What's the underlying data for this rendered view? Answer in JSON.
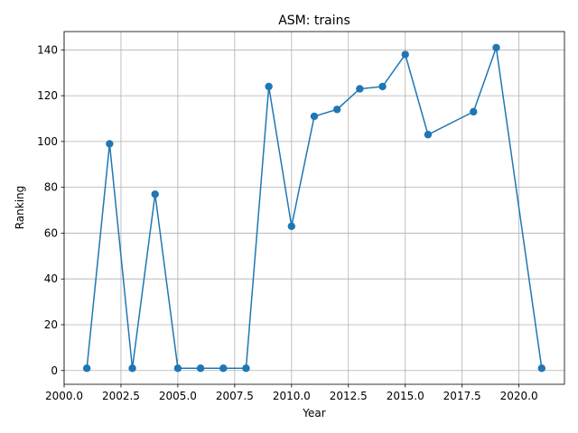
{
  "chart_data": {
    "type": "line",
    "title": "ASM: trains",
    "xlabel": "Year",
    "ylabel": "Ranking",
    "xlim": [
      2000.0,
      2022.0
    ],
    "ylim": [
      -6,
      148
    ],
    "xticks": [
      2000.0,
      2002.5,
      2005.0,
      2007.5,
      2010.0,
      2012.5,
      2015.0,
      2017.5,
      2020.0
    ],
    "xtick_labels": [
      "2000.0",
      "2002.5",
      "2005.0",
      "2007.5",
      "2010.0",
      "2012.5",
      "2015.0",
      "2017.5",
      "2020.0"
    ],
    "yticks": [
      0,
      20,
      40,
      60,
      80,
      100,
      120,
      140
    ],
    "ytick_labels": [
      "0",
      "20",
      "40",
      "60",
      "80",
      "100",
      "120",
      "140"
    ],
    "grid": true,
    "x": [
      2001,
      2002,
      2003,
      2004,
      2005,
      2006,
      2007,
      2008,
      2009,
      2010,
      2011,
      2012,
      2013,
      2014,
      2015,
      2016,
      2018,
      2019,
      2021
    ],
    "y": [
      1,
      99,
      1,
      77,
      1,
      1,
      1,
      1,
      124,
      63,
      111,
      114,
      123,
      124,
      138,
      103,
      113,
      141,
      1
    ],
    "color": "#1f77b4"
  }
}
